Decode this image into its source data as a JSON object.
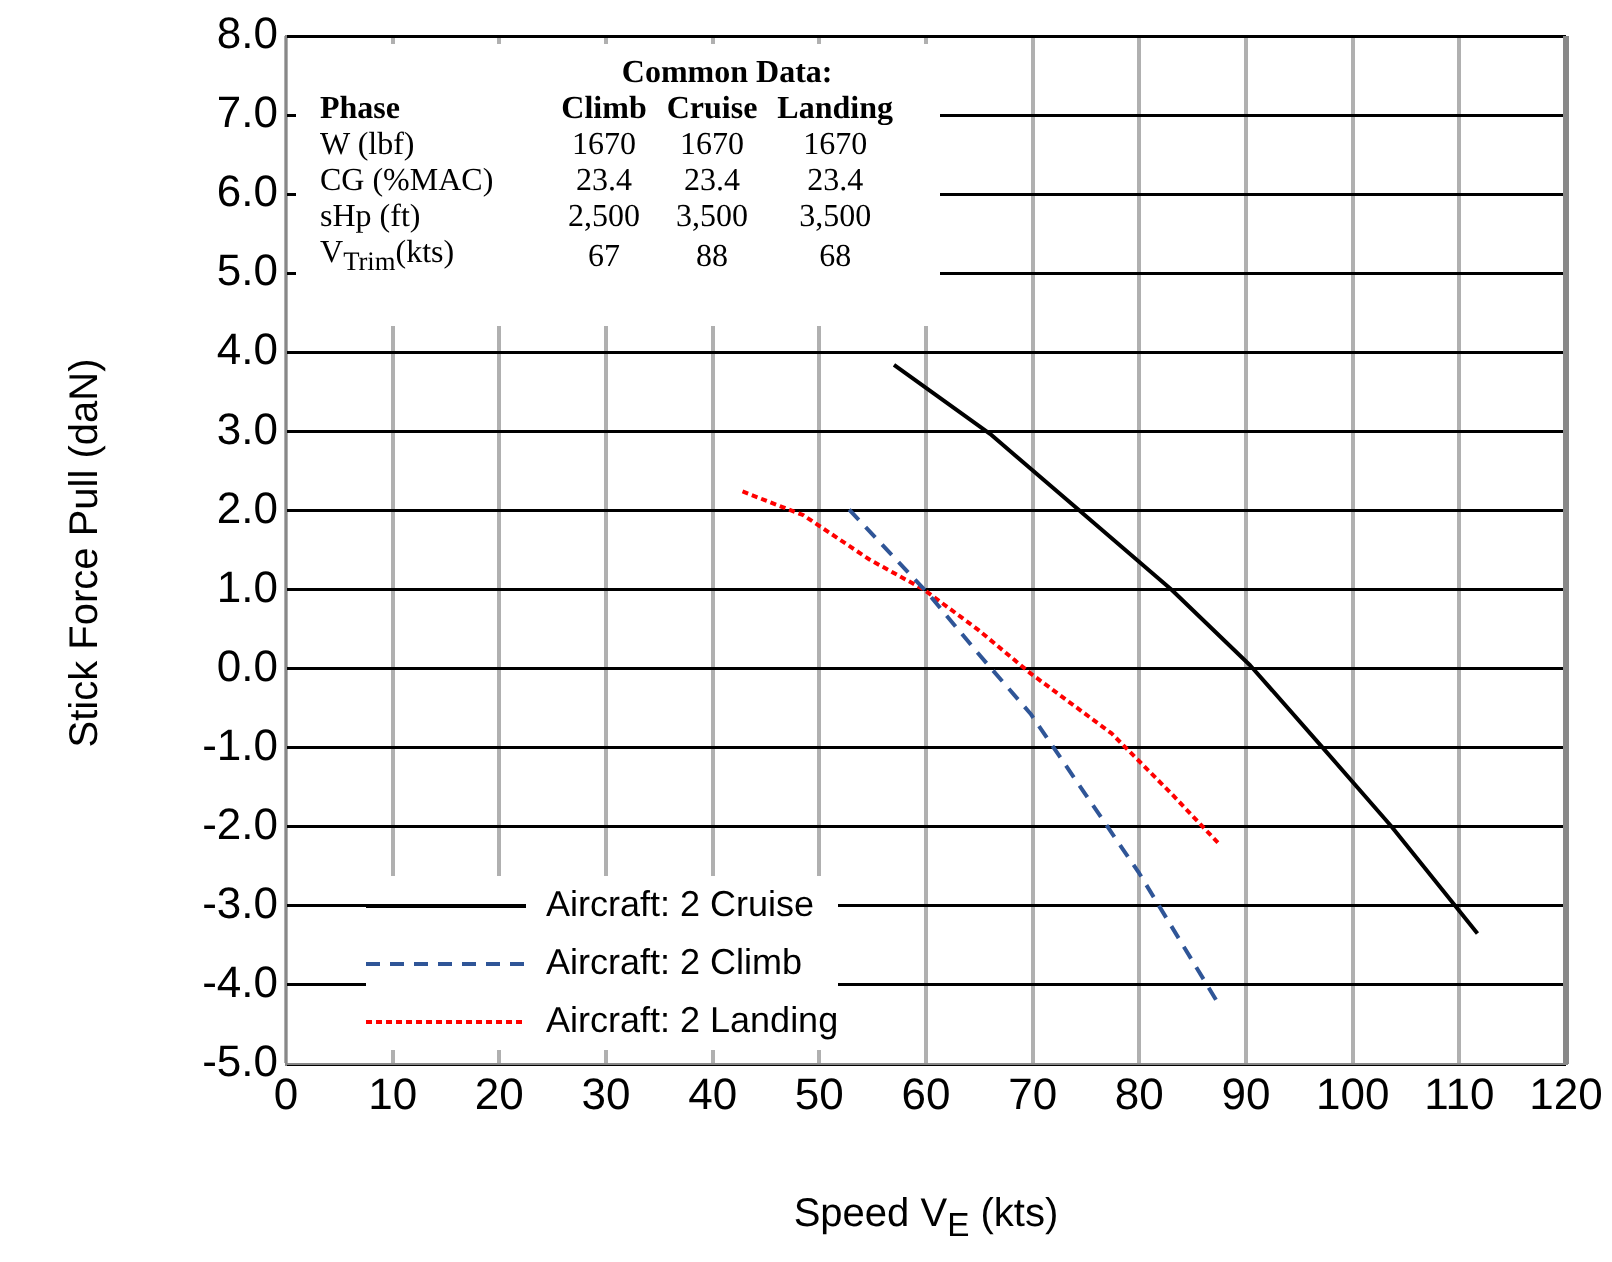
{
  "chart_data": {
    "type": "line",
    "xlabel": "Speed V$_{E}$ (kts)",
    "ylabel": "Stick Force Pull (daN)",
    "xlim": [
      0,
      120
    ],
    "xticks": [
      0,
      10,
      20,
      30,
      40,
      50,
      60,
      70,
      80,
      90,
      100,
      110,
      120
    ],
    "ylim": [
      -5,
      8
    ],
    "yticks": [
      {
        "value": -5,
        "label": "-5.0"
      },
      {
        "value": -4,
        "label": "-4.0"
      },
      {
        "value": -3,
        "label": "-3.0"
      },
      {
        "value": -2,
        "label": "-2.0"
      },
      {
        "value": -1,
        "label": "-1.0"
      },
      {
        "value": 0,
        "label": "0.0"
      },
      {
        "value": 1,
        "label": "1.0"
      },
      {
        "value": 2,
        "label": "2.0"
      },
      {
        "value": 3,
        "label": "3.0"
      },
      {
        "value": 4,
        "label": "4.0"
      },
      {
        "value": 5,
        "label": "5.0"
      },
      {
        "value": 6,
        "label": "6.0"
      },
      {
        "value": 7,
        "label": "7.0"
      },
      {
        "value": 8,
        "label": "8.0"
      }
    ],
    "grid": true,
    "legend": "bottom left",
    "marker": "none",
    "series": [
      {
        "name": "Aircraft: 2 Cruise",
        "color": "#000000",
        "line_style": "solid",
        "x": [
          57,
          66,
          74.9,
          83,
          90.4,
          97,
          103.6,
          111.7
        ],
        "values": [
          3.84,
          2.97,
          1.94,
          1.0,
          0.04,
          -0.97,
          -1.99,
          -3.35
        ]
      },
      {
        "name": "Aircraft: 2 Climb",
        "color": "#2f5597",
        "line_style": "dashed",
        "x": [
          52.8,
          60.2,
          64.9,
          69.8,
          74.9,
          80,
          87.2
        ],
        "values": [
          2.01,
          0.95,
          0.19,
          -0.57,
          -1.58,
          -2.59,
          -4.19
        ]
      },
      {
        "name": "Aircraft: 2 Landing",
        "color": "#ff0000",
        "line_style": "dotted",
        "x": [
          42.8,
          48.5,
          54.7,
          59.8,
          64.9,
          69.8,
          77.4,
          83,
          87.5
        ],
        "values": [
          2.24,
          1.94,
          1.38,
          1.0,
          0.49,
          -0.06,
          -0.82,
          -1.58,
          -2.22
        ]
      }
    ],
    "annotations": [
      "Common Data:",
      "Phase",
      "Climb",
      "Cruise",
      "Landing",
      "W (lbf)",
      "1670",
      "1670",
      "1670",
      "CG (%MAC)",
      "23.4",
      "23.4",
      "23.4",
      "sHp (ft)",
      "2,500",
      "3,500",
      "3,500",
      "V$_{Trim}$(kts)",
      "67",
      "88",
      "68"
    ]
  }
}
